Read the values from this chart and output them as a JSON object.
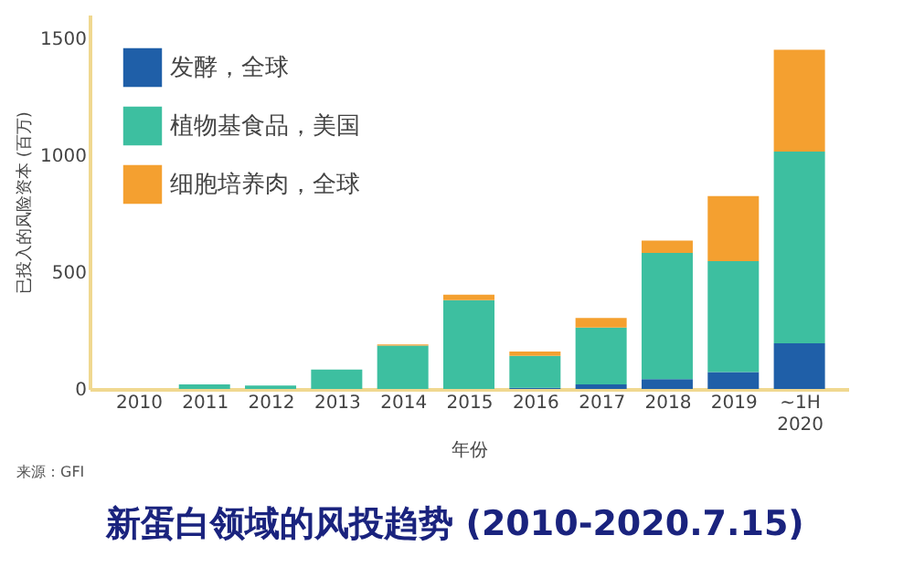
{
  "chart_data": {
    "type": "bar",
    "stacked": true,
    "title": "新蛋白领域的风投趋势 (2010-2020.7.15)",
    "xlabel": "年份",
    "ylabel": "已投入的风险资本 (百万)",
    "annotations": [
      "来源：GFI"
    ],
    "categories": [
      "2010",
      "2011",
      "2012",
      "2013",
      "2014",
      "2015",
      "2016",
      "2017",
      "2018",
      "2019",
      "~1H 2020"
    ],
    "series": [
      {
        "name": "发酵，全球",
        "color": "#1f5fa8",
        "values": [
          0,
          0,
          0,
          0,
          0,
          0,
          5,
          20,
          42,
          72,
          195
        ]
      },
      {
        "name": "植物基食品，美国",
        "color": "#3dbfa0",
        "values": [
          0,
          20,
          15,
          83,
          185,
          380,
          136,
          242,
          539,
          474,
          820
        ]
      },
      {
        "name": "细胞培养肉，全球",
        "color": "#f4a030",
        "values": [
          0,
          0,
          0,
          0,
          5,
          23,
          19,
          41,
          53,
          278,
          435
        ]
      }
    ],
    "ylim": [
      0,
      1600
    ],
    "yticks": [
      0,
      500,
      1000,
      1500
    ],
    "grid": false,
    "legend": "top left"
  }
}
